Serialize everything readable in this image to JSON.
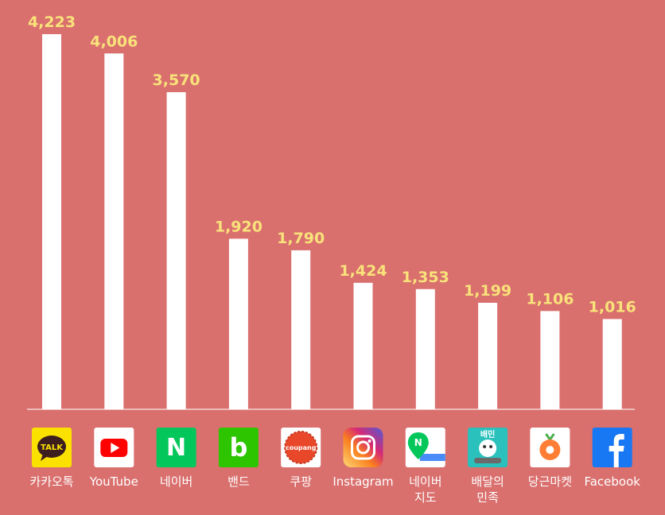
{
  "chart_data": {
    "type": "bar",
    "title": "",
    "xlabel": "",
    "ylabel": "",
    "ylim": [
      0,
      4223
    ],
    "grid": false,
    "categories": [
      "카카오톡",
      "YouTube",
      "네이버",
      "밴드",
      "쿠팡",
      "Instagram",
      "네이버 지도",
      "배달의 민족",
      "당근마켓",
      "Facebook"
    ],
    "category_lines": [
      [
        "카카오톡"
      ],
      [
        "YouTube"
      ],
      [
        "네이버"
      ],
      [
        "밴드"
      ],
      [
        "쿠팡"
      ],
      [
        "Instagram"
      ],
      [
        "네이버",
        "지도"
      ],
      [
        "배달의",
        "민족"
      ],
      [
        "당근마켓"
      ],
      [
        "Facebook"
      ]
    ],
    "values": [
      4223,
      4006,
      3570,
      1920,
      1790,
      1424,
      1353,
      1199,
      1106,
      1016
    ],
    "value_labels": [
      "4,223",
      "4,006",
      "3,570",
      "1,920",
      "1,790",
      "1,424",
      "1,353",
      "1,199",
      "1,106",
      "1,016"
    ],
    "icon_names": [
      "kakaotalk-icon",
      "youtube-icon",
      "naver-icon",
      "band-icon",
      "coupang-icon",
      "instagram-icon",
      "naver-map-icon",
      "baemin-icon",
      "daangn-icon",
      "facebook-icon"
    ],
    "icon_texts": {
      "kakaotalk": "TALK",
      "naver": "N",
      "band": "b",
      "coupang": "coupang",
      "naver_map": "N",
      "baemin": "배민"
    },
    "colors": {
      "background": "#d9706e",
      "bar": "#ffffff",
      "value_label": "#f9e27a",
      "axis": "#f4d4d2",
      "category_label": "#ffffff"
    }
  }
}
